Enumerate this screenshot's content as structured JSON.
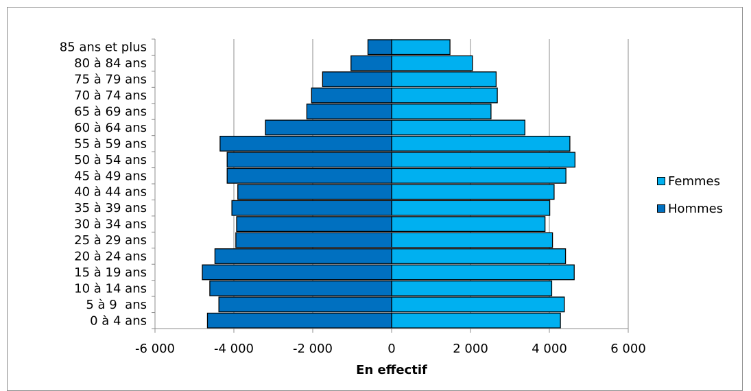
{
  "chart_data": {
    "type": "bar",
    "orientation": "horizontal",
    "title": "",
    "xlabel": "En effectif",
    "ylabel": "",
    "xlim": [
      -6000,
      6000
    ],
    "xticks": [
      -6000,
      -4000,
      -2000,
      0,
      2000,
      4000,
      6000
    ],
    "xtick_labels": [
      "-6 000",
      "-4 000",
      "-2 000",
      "0",
      "2 000",
      "4 000",
      "6 000"
    ],
    "grid": true,
    "legend_position": "right",
    "categories": [
      "85 ans et plus",
      "80 à 84 ans",
      "75 à 79 ans",
      "70 à 74 ans",
      "65 à 69 ans",
      "60 à 64 ans",
      "55 à 59 ans",
      "50 à 54 ans",
      "45 à 49 ans",
      "40 à 44 ans",
      "35 à 39 ans",
      "30 à 34 ans",
      "25 à 29 ans",
      "20 à 24 ans",
      "15 à 19 ans",
      "10 à 14 ans",
      "5 à 9  ans",
      "0 à 4 ans"
    ],
    "series": [
      {
        "name": "Femmes",
        "color": "#00b0f0",
        "values": [
          1480,
          2050,
          2650,
          2680,
          2520,
          3380,
          4520,
          4650,
          4420,
          4120,
          4010,
          3890,
          4080,
          4410,
          4630,
          4060,
          4380,
          4280
        ]
      },
      {
        "name": "Hommes",
        "color": "#0070c0",
        "values": [
          -600,
          -1030,
          -1750,
          -2030,
          -2150,
          -3200,
          -4350,
          -4170,
          -4170,
          -3900,
          -4050,
          -3930,
          -3950,
          -4480,
          -4800,
          -4610,
          -4380,
          -4670
        ]
      }
    ]
  },
  "legend": {
    "items": [
      {
        "label": "Femmes",
        "color": "#00b0f0"
      },
      {
        "label": "Hommes",
        "color": "#0070c0"
      }
    ]
  }
}
